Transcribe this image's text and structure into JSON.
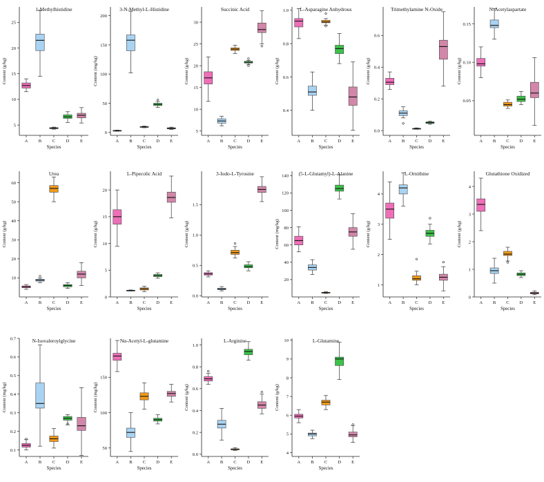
{
  "figure": {
    "colors": {
      "A": "#EE6FB8",
      "B": "#A9D3F2",
      "C": "#F29A1B",
      "D": "#3CC14A",
      "E": "#D286A9"
    },
    "species_label": "Species"
  },
  "chart_data": [
    {
      "type": "box",
      "title": "1-Methylhistidine",
      "xlabel": "Species",
      "ylabel": "Content (g/kg)",
      "ylim": [
        3,
        28
      ],
      "yticks": [
        5,
        10,
        15,
        20,
        25
      ],
      "categories": [
        "A",
        "B",
        "C",
        "D",
        "E"
      ],
      "boxes": [
        {
          "min": 11.5,
          "q1": 12.2,
          "median": 12.7,
          "q3": 13.2,
          "max": 14.0,
          "outliers": []
        },
        {
          "min": 14.5,
          "q1": 19.5,
          "median": 21.5,
          "q3": 22.7,
          "max": 27.3,
          "outliers": []
        },
        {
          "min": 4.2,
          "q1": 4.3,
          "median": 4.4,
          "q3": 4.5,
          "max": 4.6,
          "outliers": []
        },
        {
          "min": 5.5,
          "q1": 6.3,
          "median": 6.6,
          "q3": 7.0,
          "max": 7.6,
          "outliers": []
        },
        {
          "min": 5.4,
          "q1": 6.4,
          "median": 6.9,
          "q3": 7.3,
          "max": 8.4,
          "outliers": []
        }
      ]
    },
    {
      "type": "box",
      "title": "3-N-Methyl-L-Histidine",
      "xlabel": "Species",
      "ylabel": "Content (mg/kg)",
      "ylim": [
        -5,
        215
      ],
      "yticks": [
        0,
        50,
        100,
        150,
        200
      ],
      "categories": [
        "A",
        "B",
        "C",
        "D",
        "E"
      ],
      "boxes": [
        {
          "min": 2,
          "q1": 2.5,
          "median": 3,
          "q3": 3.5,
          "max": 4,
          "outliers": []
        },
        {
          "min": 102,
          "q1": 140,
          "median": 158,
          "q3": 167,
          "max": 207,
          "outliers": []
        },
        {
          "min": 8,
          "q1": 9,
          "median": 9.5,
          "q3": 10,
          "max": 11,
          "outliers": []
        },
        {
          "min": 43,
          "q1": 46,
          "median": 48,
          "q3": 50,
          "max": 53,
          "outliers": [
            56
          ]
        },
        {
          "min": 5,
          "q1": 6,
          "median": 7,
          "q3": 8,
          "max": 9,
          "outliers": []
        }
      ]
    },
    {
      "type": "box",
      "title": "Succinic Acid",
      "xlabel": "Species",
      "ylabel": "Content (g/kg)",
      "ylim": [
        4,
        33.5
      ],
      "yticks": [
        5,
        10,
        15,
        20,
        25,
        30
      ],
      "categories": [
        "A",
        "B",
        "C",
        "D",
        "E"
      ],
      "boxes": [
        {
          "min": 11.8,
          "q1": 15.8,
          "median": 17.2,
          "q3": 18.6,
          "max": 22,
          "outliers": []
        },
        {
          "min": 6.2,
          "q1": 6.8,
          "median": 7.3,
          "q3": 7.8,
          "max": 8.4,
          "outliers": []
        },
        {
          "min": 22.8,
          "q1": 23.5,
          "median": 23.8,
          "q3": 24.1,
          "max": 24.7,
          "outliers": []
        },
        {
          "min": 20.3,
          "q1": 20.6,
          "median": 20.8,
          "q3": 21.0,
          "max": 21.2,
          "outliers": [
            20.0,
            21.6
          ]
        },
        {
          "min": 25,
          "q1": 27.6,
          "median": 28.3,
          "q3": 29.8,
          "max": 32.6,
          "outliers": [
            24.5
          ]
        }
      ]
    },
    {
      "type": "box",
      "title": "L-Asparagine Anhydrous",
      "xlabel": "Species",
      "ylabel": "Content (g/kg)",
      "ylim": [
        0.25,
        1.02
      ],
      "yticks": [
        0.4,
        0.6,
        0.8,
        1.0
      ],
      "categories": [
        "A",
        "B",
        "C",
        "D",
        "E"
      ],
      "boxes": [
        {
          "min": 0.83,
          "q1": 0.9,
          "median": 0.935,
          "q3": 0.95,
          "max": 1.01,
          "outliers": []
        },
        {
          "min": 0.4,
          "q1": 0.49,
          "median": 0.51,
          "q3": 0.545,
          "max": 0.63,
          "outliers": []
        },
        {
          "min": 0.91,
          "q1": 0.925,
          "median": 0.93,
          "q3": 0.94,
          "max": 0.95,
          "outliers": [
            0.98,
            0.905
          ]
        },
        {
          "min": 0.68,
          "q1": 0.74,
          "median": 0.77,
          "q3": 0.79,
          "max": 0.86,
          "outliers": []
        },
        {
          "min": 0.28,
          "q1": 0.43,
          "median": 0.48,
          "q3": 0.54,
          "max": 0.69,
          "outliers": []
        }
      ]
    },
    {
      "type": "box",
      "title": "Trimethylamine N-Oxide",
      "xlabel": "Species",
      "ylabel": "Content (g/kg)",
      "ylim": [
        -0.03,
        0.78
      ],
      "yticks": [
        0.0,
        0.2,
        0.4,
        0.6
      ],
      "categories": [
        "A",
        "B",
        "C",
        "D",
        "E"
      ],
      "boxes": [
        {
          "min": 0.26,
          "q1": 0.29,
          "median": 0.305,
          "q3": 0.33,
          "max": 0.37,
          "outliers": []
        },
        {
          "min": 0.08,
          "q1": 0.095,
          "median": 0.11,
          "q3": 0.125,
          "max": 0.15,
          "outliers": [
            0.045
          ]
        },
        {
          "min": 0.008,
          "q1": 0.01,
          "median": 0.012,
          "q3": 0.014,
          "max": 0.017,
          "outliers": []
        },
        {
          "min": 0.04,
          "q1": 0.045,
          "median": 0.05,
          "q3": 0.055,
          "max": 0.06,
          "outliers": []
        },
        {
          "min": 0.28,
          "q1": 0.45,
          "median": 0.53,
          "q3": 0.57,
          "max": 0.75,
          "outliers": []
        }
      ]
    },
    {
      "type": "box",
      "title": "N-Acetylaspartate",
      "xlabel": "Species",
      "ylabel": "Content (g/kg)",
      "ylim": [
        0.005,
        0.172
      ],
      "yticks": [
        0.05,
        0.1,
        0.15
      ],
      "categories": [
        "A",
        "B",
        "C",
        "D",
        "E"
      ],
      "boxes": [
        {
          "min": 0.08,
          "q1": 0.095,
          "median": 0.098,
          "q3": 0.105,
          "max": 0.12,
          "outliers": []
        },
        {
          "min": 0.13,
          "q1": 0.145,
          "median": 0.148,
          "q3": 0.155,
          "max": 0.17,
          "outliers": []
        },
        {
          "min": 0.04,
          "q1": 0.043,
          "median": 0.045,
          "q3": 0.048,
          "max": 0.051,
          "outliers": []
        },
        {
          "min": 0.045,
          "q1": 0.049,
          "median": 0.052,
          "q3": 0.056,
          "max": 0.062,
          "outliers": []
        },
        {
          "min": 0.018,
          "q1": 0.054,
          "median": 0.06,
          "q3": 0.074,
          "max": 0.106,
          "outliers": []
        }
      ]
    },
    {
      "type": "box",
      "title": "Urea",
      "xlabel": "Species",
      "ylabel": "Content (g/kg)",
      "ylim": [
        0,
        66
      ],
      "yticks": [
        10,
        20,
        30,
        40,
        50,
        60
      ],
      "categories": [
        "A",
        "B",
        "C",
        "D",
        "E"
      ],
      "boxes": [
        {
          "min": 4,
          "q1": 4.8,
          "median": 5.3,
          "q3": 5.8,
          "max": 6.5,
          "outliers": []
        },
        {
          "min": 7.5,
          "q1": 8.3,
          "median": 8.8,
          "q3": 9.3,
          "max": 10,
          "outliers": [
            11
          ]
        },
        {
          "min": 50,
          "q1": 55,
          "median": 57,
          "q3": 58.5,
          "max": 63,
          "outliers": []
        },
        {
          "min": 4.5,
          "q1": 5.3,
          "median": 6,
          "q3": 6.5,
          "max": 7.5,
          "outliers": []
        },
        {
          "min": 6,
          "q1": 10,
          "median": 12,
          "q3": 13.5,
          "max": 18,
          "outliers": []
        }
      ]
    },
    {
      "type": "box",
      "title": "L-Pipecolic Acid",
      "xlabel": "Species",
      "ylabel": "Content (g/kg)",
      "ylim": [
        0,
        23.5
      ],
      "yticks": [
        0,
        5,
        10,
        15,
        20
      ],
      "categories": [
        "A",
        "B",
        "C",
        "D",
        "E"
      ],
      "boxes": [
        {
          "min": 9.5,
          "q1": 13.6,
          "median": 15,
          "q3": 16.3,
          "max": 20,
          "outliers": []
        },
        {
          "min": 1.1,
          "q1": 1.15,
          "median": 1.2,
          "q3": 1.25,
          "max": 1.3,
          "outliers": []
        },
        {
          "min": 1.0,
          "q1": 1.3,
          "median": 1.5,
          "q3": 1.7,
          "max": 2.0,
          "outliers": []
        },
        {
          "min": 3.5,
          "q1": 3.8,
          "median": 4.0,
          "q3": 4.2,
          "max": 4.5,
          "outliers": []
        },
        {
          "min": 14.8,
          "q1": 17.7,
          "median": 18.6,
          "q3": 19.6,
          "max": 22.6,
          "outliers": []
        }
      ]
    },
    {
      "type": "box",
      "title": "3-Iodo-L-Tyrosine",
      "xlabel": "Species",
      "ylabel": "Content (g/kg)",
      "ylim": [
        -0.02,
        2.05
      ],
      "yticks": [
        0.0,
        0.5,
        1.0,
        1.5
      ],
      "categories": [
        "A",
        "B",
        "C",
        "D",
        "E"
      ],
      "boxes": [
        {
          "min": 0.31,
          "q1": 0.34,
          "median": 0.36,
          "q3": 0.38,
          "max": 0.41,
          "outliers": []
        },
        {
          "min": 0.08,
          "q1": 0.1,
          "median": 0.11,
          "q3": 0.125,
          "max": 0.15,
          "outliers": []
        },
        {
          "min": 0.62,
          "q1": 0.68,
          "median": 0.71,
          "q3": 0.75,
          "max": 0.81,
          "outliers": [
            0.86
          ]
        },
        {
          "min": 0.41,
          "q1": 0.46,
          "median": 0.48,
          "q3": 0.51,
          "max": 0.56,
          "outliers": []
        },
        {
          "min": 1.55,
          "q1": 1.7,
          "median": 1.75,
          "q3": 1.8,
          "max": 1.96,
          "outliers": []
        }
      ]
    },
    {
      "type": "box",
      "title": "(5-L-Glutamyl)-L-Alanine",
      "xlabel": "Species",
      "ylabel": "Content (mg/kg)",
      "ylim": [
        0,
        145
      ],
      "yticks": [
        20,
        40,
        60,
        80,
        100,
        120,
        140
      ],
      "categories": [
        "A",
        "B",
        "C",
        "D",
        "E"
      ],
      "boxes": [
        {
          "min": 52,
          "q1": 60,
          "median": 65,
          "q3": 70,
          "max": 81,
          "outliers": []
        },
        {
          "min": 26,
          "q1": 31,
          "median": 34,
          "q3": 37,
          "max": 43,
          "outliers": []
        },
        {
          "min": 4,
          "q1": 4.7,
          "median": 5,
          "q3": 5.3,
          "max": 6,
          "outliers": []
        },
        {
          "min": 113,
          "q1": 122,
          "median": 125,
          "q3": 129,
          "max": 141,
          "outliers": []
        },
        {
          "min": 55,
          "q1": 70,
          "median": 75,
          "q3": 80,
          "max": 96,
          "outliers": []
        }
      ]
    },
    {
      "type": "box",
      "title": "L-Ornithine",
      "xlabel": "Species",
      "ylabel": "Content (g/kg)",
      "ylim": [
        0.6,
        4.75
      ],
      "yticks": [
        1,
        2,
        3,
        4
      ],
      "categories": [
        "A",
        "B",
        "C",
        "D",
        "E"
      ],
      "boxes": [
        {
          "min": 2.5,
          "q1": 3.2,
          "median": 3.5,
          "q3": 3.7,
          "max": 4.4,
          "outliers": []
        },
        {
          "min": 3.6,
          "q1": 4.0,
          "median": 4.2,
          "q3": 4.3,
          "max": 4.7,
          "outliers": []
        },
        {
          "min": 1.0,
          "q1": 1.15,
          "median": 1.2,
          "q3": 1.3,
          "max": 1.45,
          "outliers": [
            1.85
          ]
        },
        {
          "min": 2.35,
          "q1": 2.6,
          "median": 2.7,
          "q3": 2.8,
          "max": 3.0,
          "outliers": [
            3.2
          ]
        },
        {
          "min": 0.8,
          "q1": 1.15,
          "median": 1.25,
          "q3": 1.35,
          "max": 1.6,
          "outliers": [
            1.75
          ]
        }
      ]
    },
    {
      "type": "box",
      "title": "Glutathione Oxidized",
      "xlabel": "Species",
      "ylabel": "Content (g/kg)",
      "ylim": [
        0,
        4.55
      ],
      "yticks": [
        0,
        1,
        2,
        3,
        4
      ],
      "categories": [
        "A",
        "B",
        "C",
        "D",
        "E"
      ],
      "boxes": [
        {
          "min": 2.4,
          "q1": 3.1,
          "median": 3.35,
          "q3": 3.55,
          "max": 4.3,
          "outliers": []
        },
        {
          "min": 0.5,
          "q1": 0.85,
          "median": 0.95,
          "q3": 1.05,
          "max": 1.4,
          "outliers": []
        },
        {
          "min": 1.3,
          "q1": 1.5,
          "median": 1.55,
          "q3": 1.65,
          "max": 1.8,
          "outliers": [
            1.25
          ]
        },
        {
          "min": 0.7,
          "q1": 0.77,
          "median": 0.82,
          "q3": 0.87,
          "max": 0.95,
          "outliers": []
        },
        {
          "min": 0.08,
          "q1": 0.11,
          "median": 0.14,
          "q3": 0.17,
          "max": 0.22,
          "outliers": []
        }
      ]
    },
    {
      "type": "box",
      "title": "N-Isovaleroylglycine",
      "xlabel": "Species",
      "ylabel": "Content (mg/kg)",
      "ylim": [
        0.065,
        0.7
      ],
      "yticks": [
        0.1,
        0.2,
        0.3,
        0.4,
        0.5,
        0.6,
        0.7
      ],
      "categories": [
        "A",
        "B",
        "C",
        "D",
        "E"
      ],
      "boxes": [
        {
          "min": 0.1,
          "q1": 0.115,
          "median": 0.125,
          "q3": 0.135,
          "max": 0.155,
          "outliers": [
            0.16
          ]
        },
        {
          "min": 0.12,
          "q1": 0.325,
          "median": 0.35,
          "q3": 0.46,
          "max": 0.665,
          "outliers": []
        },
        {
          "min": 0.11,
          "q1": 0.145,
          "median": 0.16,
          "q3": 0.175,
          "max": 0.215,
          "outliers": []
        },
        {
          "min": 0.235,
          "q1": 0.26,
          "median": 0.27,
          "q3": 0.28,
          "max": 0.29,
          "outliers": [
            0.24
          ]
        },
        {
          "min": 0.07,
          "q1": 0.205,
          "median": 0.23,
          "q3": 0.275,
          "max": 0.435,
          "outliers": []
        }
      ]
    },
    {
      "type": "box",
      "title": "Nα-Acetyl-L-glutamine",
      "xlabel": "Species",
      "ylabel": "Content (mg/kg)",
      "ylim": [
        38,
        205
      ],
      "yticks": [
        50,
        100,
        150
      ],
      "categories": [
        "A",
        "B",
        "C",
        "D",
        "E"
      ],
      "boxes": [
        {
          "min": 158,
          "q1": 174,
          "median": 180,
          "q3": 184,
          "max": 202,
          "outliers": []
        },
        {
          "min": 45,
          "q1": 65,
          "median": 72,
          "q3": 78,
          "max": 100,
          "outliers": []
        },
        {
          "min": 105,
          "q1": 118,
          "median": 123,
          "q3": 128,
          "max": 142,
          "outliers": []
        },
        {
          "min": 84,
          "q1": 88,
          "median": 90,
          "q3": 92,
          "max": 97,
          "outliers": []
        },
        {
          "min": 115,
          "q1": 123,
          "median": 127,
          "q3": 130,
          "max": 140,
          "outliers": []
        }
      ]
    },
    {
      "type": "box",
      "title": "L-Arginine",
      "xlabel": "Species",
      "ylabel": "Content (g/kg)",
      "ylim": [
        -0.02,
        1.06
      ],
      "yticks": [
        0.0,
        0.2,
        0.4,
        0.6,
        0.8,
        1.0
      ],
      "categories": [
        "A",
        "B",
        "C",
        "D",
        "E"
      ],
      "boxes": [
        {
          "min": 0.64,
          "q1": 0.67,
          "median": 0.69,
          "q3": 0.71,
          "max": 0.74,
          "outliers": [
            0.76
          ]
        },
        {
          "min": 0.13,
          "q1": 0.24,
          "median": 0.275,
          "q3": 0.31,
          "max": 0.42,
          "outliers": []
        },
        {
          "min": 0.035,
          "q1": 0.04,
          "median": 0.045,
          "q3": 0.05,
          "max": 0.06,
          "outliers": []
        },
        {
          "min": 0.86,
          "q1": 0.91,
          "median": 0.94,
          "q3": 0.96,
          "max": 1.03,
          "outliers": []
        },
        {
          "min": 0.37,
          "q1": 0.42,
          "median": 0.45,
          "q3": 0.48,
          "max": 0.55,
          "outliers": [
            0.57
          ]
        }
      ]
    },
    {
      "type": "box",
      "title": "L-Glutamine",
      "xlabel": "Species",
      "ylabel": "Content (g/kg)",
      "ylim": [
        3.8,
        10.1
      ],
      "yticks": [
        4,
        5,
        6,
        7,
        8,
        9,
        10
      ],
      "categories": [
        "A",
        "B",
        "C",
        "D",
        "E"
      ],
      "boxes": [
        {
          "min": 5.6,
          "q1": 5.85,
          "median": 5.95,
          "q3": 6.05,
          "max": 6.3,
          "outliers": []
        },
        {
          "min": 4.75,
          "q1": 4.9,
          "median": 5.0,
          "q3": 5.05,
          "max": 5.2,
          "outliers": []
        },
        {
          "min": 6.3,
          "q1": 6.55,
          "median": 6.7,
          "q3": 6.8,
          "max": 7.05,
          "outliers": []
        },
        {
          "min": 7.9,
          "q1": 8.65,
          "median": 9.0,
          "q3": 9.1,
          "max": 9.9,
          "outliers": []
        },
        {
          "min": 4.55,
          "q1": 4.85,
          "median": 4.95,
          "q3": 5.1,
          "max": 5.45,
          "outliers": [
            5.5
          ]
        }
      ]
    }
  ]
}
